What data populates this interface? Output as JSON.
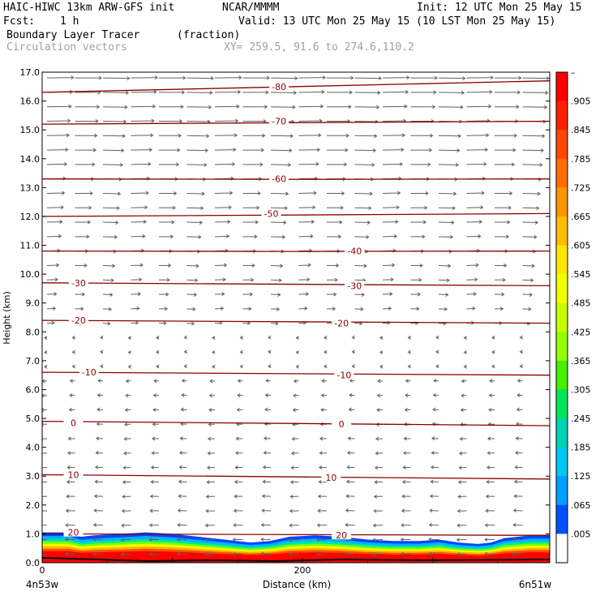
{
  "header": {
    "model": "HAIC-HIWC 13km ARW-GFS init",
    "org": "NCAR/MMMM",
    "init": "Init: 12 UTC Mon 25 May 15",
    "fcst_label": "Fcst:",
    "fcst_value": "1 h",
    "valid": "Valid: 13 UTC Mon 25 May 15 (10 LST Mon 25 May 15)",
    "field": "Boundary Layer Tracer",
    "units": "(fraction)",
    "vectors": "Circulation vectors",
    "xy": "XY= 259.5, 91.6 to 274.6,110.2"
  },
  "chart_data": {
    "type": "heatmap",
    "ylabel": "Height (km)",
    "xlabel": "Distance (km)",
    "ylim": [
      0,
      17
    ],
    "xlim": [
      0,
      390
    ],
    "y_ticks": [
      "0.0",
      "1.0",
      "2.0",
      "3.0",
      "4.0",
      "5.0",
      "6.0",
      "7.0",
      "8.0",
      "9.0",
      "10.0",
      "11.0",
      "12.0",
      "13.0",
      "14.0",
      "15.0",
      "16.0",
      "17.0"
    ],
    "x_ticks": [
      {
        "value": 0,
        "label": "0"
      },
      {
        "value": 200,
        "label": "200"
      }
    ],
    "x_left_label": "4n53w",
    "x_right_label": "6n51w",
    "colorbar_labels": [
      "–",
      ".905",
      ".845",
      ".785",
      ".725",
      ".665",
      ".605",
      ".545",
      ".485",
      ".425",
      ".365",
      ".305",
      ".245",
      ".185",
      ".125",
      ".065",
      ".005"
    ],
    "colorbar_colors": [
      "#ff0000",
      "#ff2000",
      "#ff4600",
      "#ff6e00",
      "#ff9600",
      "#ffbe00",
      "#ffe600",
      "#f0ff00",
      "#c8ff00",
      "#96ff00",
      "#46f000",
      "#00e65a",
      "#00d2b4",
      "#00c8f0",
      "#00a0ff",
      "#0050ff",
      "#ffffff"
    ],
    "temperature_contours": [
      {
        "label": "-80",
        "y_left": 16.3,
        "y_right": 16.7
      },
      {
        "label": "-70",
        "y_left": 15.2,
        "y_right": 15.3
      },
      {
        "label": "-60",
        "y_left": 13.3,
        "y_right": 13.3
      },
      {
        "label": "-50",
        "y_left": 12.0,
        "y_right": 12.1
      },
      {
        "label": "-40",
        "y_left": 10.8,
        "y_right": 10.8
      },
      {
        "label": "-30",
        "y_left": 9.7,
        "y_right": 9.6
      },
      {
        "label": "-20",
        "y_left": 8.4,
        "y_right": 8.3
      },
      {
        "label": "-10",
        "y_left": 6.6,
        "y_right": 6.5
      },
      {
        "label": "0",
        "y_left": 4.9,
        "y_right": 4.75
      },
      {
        "label": "10",
        "y_left": 3.05,
        "y_right": 2.9
      },
      {
        "label": "20",
        "y_left": 1.0,
        "y_right": 0.95
      }
    ],
    "contour_label_positions": [
      {
        "label": "-80",
        "x": 182,
        "y": 16.5
      },
      {
        "label": "-70",
        "x": 182,
        "y": 15.3
      },
      {
        "label": "-60",
        "x": 182,
        "y": 13.3
      },
      {
        "label": "-50",
        "x": 176,
        "y": 12.1
      },
      {
        "label": "-40",
        "x": 240,
        "y": 10.8
      },
      {
        "label": "-30",
        "x": 28,
        "y": 9.7
      },
      {
        "label": "-30",
        "x": 240,
        "y": 9.6
      },
      {
        "label": "-20",
        "x": 28,
        "y": 8.4
      },
      {
        "label": "-20",
        "x": 230,
        "y": 8.3
      },
      {
        "label": "-10",
        "x": 36,
        "y": 6.6
      },
      {
        "label": "-10",
        "x": 232,
        "y": 6.5
      },
      {
        "label": "0",
        "x": 24,
        "y": 4.85
      },
      {
        "label": "0",
        "x": 230,
        "y": 4.8
      },
      {
        "label": "10",
        "x": 24,
        "y": 3.05
      },
      {
        "label": "10",
        "x": 222,
        "y": 2.95
      },
      {
        "label": "20",
        "x": 24,
        "y": 1.05
      },
      {
        "label": "20",
        "x": 230,
        "y": 0.95
      }
    ],
    "tracer_top_km": [
      {
        "x": 0,
        "y": 1.05
      },
      {
        "x": 20,
        "y": 1.05
      },
      {
        "x": 30,
        "y": 0.9
      },
      {
        "x": 40,
        "y": 0.95
      },
      {
        "x": 60,
        "y": 1.0
      },
      {
        "x": 80,
        "y": 1.05
      },
      {
        "x": 100,
        "y": 1.0
      },
      {
        "x": 120,
        "y": 0.9
      },
      {
        "x": 140,
        "y": 0.8
      },
      {
        "x": 160,
        "y": 0.7
      },
      {
        "x": 175,
        "y": 0.75
      },
      {
        "x": 190,
        "y": 0.9
      },
      {
        "x": 210,
        "y": 0.95
      },
      {
        "x": 230,
        "y": 0.9
      },
      {
        "x": 250,
        "y": 0.8
      },
      {
        "x": 270,
        "y": 0.75
      },
      {
        "x": 290,
        "y": 0.75
      },
      {
        "x": 305,
        "y": 0.8
      },
      {
        "x": 320,
        "y": 0.7
      },
      {
        "x": 335,
        "y": 0.65
      },
      {
        "x": 345,
        "y": 0.7
      },
      {
        "x": 355,
        "y": 0.85
      },
      {
        "x": 375,
        "y": 0.95
      },
      {
        "x": 390,
        "y": 0.95
      }
    ],
    "wind_pattern": {
      "upper_direction": "east",
      "lower_direction": "west",
      "reversal_height_km": 8.0
    }
  }
}
